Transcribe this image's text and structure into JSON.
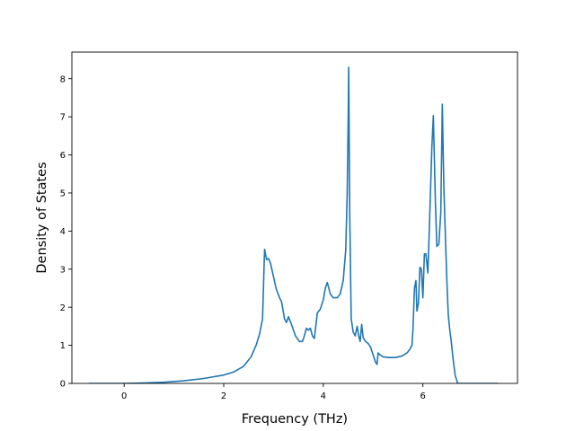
{
  "chart_data": {
    "type": "line",
    "xlabel": "Frequency (THz)",
    "ylabel": "Density of States",
    "xlim": [
      -1.05,
      7.9
    ],
    "ylim": [
      0,
      8.7
    ],
    "xticks": [
      0,
      2,
      4,
      6
    ],
    "yticks": [
      0,
      1,
      2,
      3,
      4,
      5,
      6,
      7,
      8
    ],
    "grid": false,
    "line_color": "#1f77b4",
    "series": [
      {
        "x": [
          -0.7,
          -0.3,
          0.0,
          0.4,
          0.8,
          1.2,
          1.6,
          2.0,
          2.2,
          2.4,
          2.55,
          2.65,
          2.72,
          2.78,
          2.82,
          2.86,
          2.9,
          2.94,
          3.0,
          3.05,
          3.12,
          3.16,
          3.22,
          3.26,
          3.3,
          3.36,
          3.44,
          3.52,
          3.58,
          3.62,
          3.66,
          3.7,
          3.74,
          3.78,
          3.82,
          3.88,
          3.94,
          4.0,
          4.04,
          4.08,
          4.14,
          4.2,
          4.28,
          4.34,
          4.4,
          4.45,
          4.48,
          4.5,
          4.51,
          4.53,
          4.56,
          4.6,
          4.64,
          4.68,
          4.71,
          4.74,
          4.77,
          4.8,
          4.85,
          4.9,
          4.95,
          5.0,
          5.05,
          5.08,
          5.1,
          5.14,
          5.2,
          5.3,
          5.45,
          5.58,
          5.68,
          5.74,
          5.78,
          5.8,
          5.83,
          5.86,
          5.88,
          5.91,
          5.94,
          5.97,
          6.0,
          6.03,
          6.06,
          6.1,
          6.14,
          6.18,
          6.21,
          6.25,
          6.28,
          6.32,
          6.36,
          6.39,
          6.42,
          6.46,
          6.49,
          6.51,
          6.54,
          6.57,
          6.61,
          6.65,
          6.7,
          6.75,
          6.8,
          6.84,
          6.9,
          7.0,
          7.5
        ],
        "y": [
          0.0,
          0.0,
          0.0,
          0.01,
          0.03,
          0.07,
          0.13,
          0.22,
          0.3,
          0.45,
          0.7,
          1.0,
          1.3,
          1.7,
          3.52,
          3.25,
          3.28,
          3.15,
          2.8,
          2.5,
          2.25,
          2.15,
          1.7,
          1.6,
          1.75,
          1.55,
          1.25,
          1.1,
          1.1,
          1.25,
          1.45,
          1.4,
          1.45,
          1.25,
          1.18,
          1.85,
          1.95,
          2.2,
          2.5,
          2.65,
          2.35,
          2.25,
          2.25,
          2.35,
          2.7,
          3.5,
          5.0,
          7.0,
          8.3,
          4.5,
          1.7,
          1.35,
          1.25,
          1.5,
          1.25,
          1.1,
          1.55,
          1.2,
          1.1,
          1.05,
          0.95,
          0.75,
          0.55,
          0.5,
          0.8,
          0.75,
          0.7,
          0.68,
          0.68,
          0.72,
          0.8,
          0.9,
          1.0,
          1.4,
          2.5,
          2.7,
          1.9,
          2.1,
          3.05,
          3.0,
          2.25,
          3.4,
          3.4,
          2.9,
          4.5,
          6.2,
          7.03,
          4.8,
          3.6,
          3.65,
          4.5,
          7.33,
          5.2,
          3.5,
          2.4,
          1.8,
          1.4,
          1.1,
          0.6,
          0.2,
          0.0,
          0.0,
          0.0,
          0.0,
          0.0,
          0.0,
          0.0
        ]
      }
    ]
  }
}
